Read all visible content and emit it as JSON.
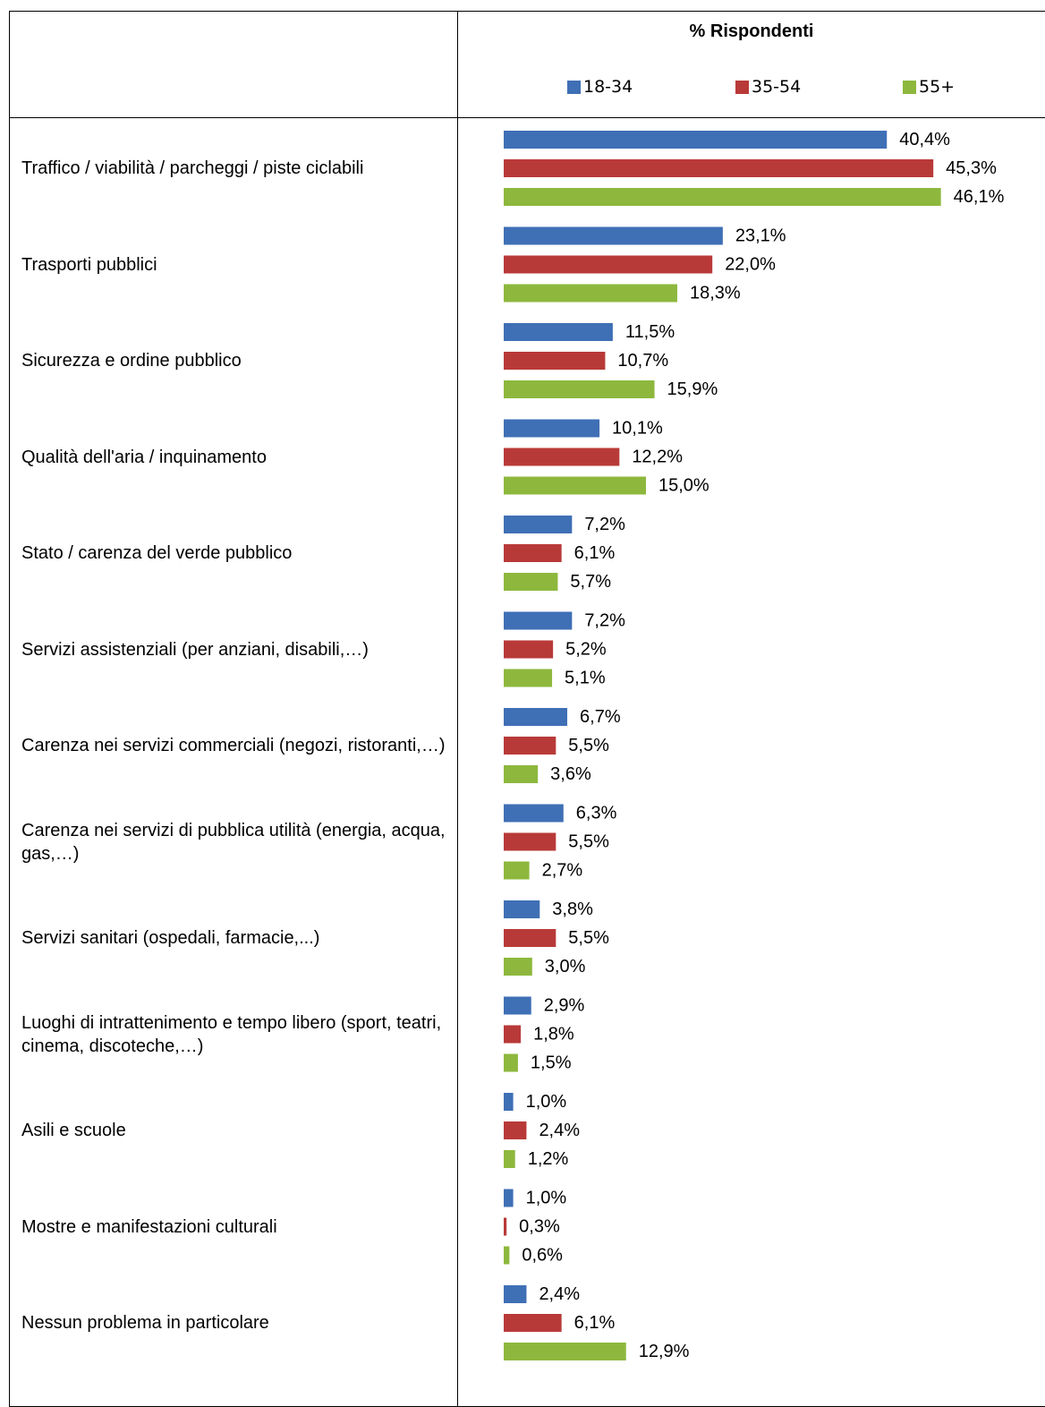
{
  "header": {
    "title": "% Rispondenti"
  },
  "legend": [
    {
      "label": "18-34",
      "color": "#3f6fb5"
    },
    {
      "label": "35-54",
      "color": "#b83a38"
    },
    {
      "label": "55+",
      "color": "#8db83d"
    }
  ],
  "chart_data": {
    "type": "bar",
    "orientation": "horizontal",
    "title": "% Rispondenti",
    "categories": [
      "Traffico / viabilità / parcheggi / piste ciclabili",
      "Trasporti pubblici",
      "Sicurezza e ordine pubblico",
      "Qualità dell'aria / inquinamento",
      "Stato / carenza del verde pubblico",
      "Servizi assistenziali (per anziani, disabili,…)",
      "Carenza nei servizi commerciali (negozi, ristoranti,…)",
      "Carenza nei servizi di pubblica utilità (energia, acqua, gas,…)",
      "Servizi sanitari (ospedali, farmacie,...)",
      "Luoghi di intrattenimento e tempo libero (sport, teatri, cinema, discoteche,…)",
      "Asili e scuole",
      "Mostre e manifestazioni culturali",
      "Nessun problema in particolare"
    ],
    "series": [
      {
        "name": "18-34",
        "color": "#3f6fb5",
        "values": [
          40.4,
          23.1,
          11.5,
          10.1,
          7.2,
          7.2,
          6.7,
          6.3,
          3.8,
          2.9,
          1.0,
          1.0,
          2.4
        ],
        "labels": [
          "40,4%",
          "23,1%",
          "11,5%",
          "10,1%",
          "7,2%",
          "7,2%",
          "6,7%",
          "6,3%",
          "3,8%",
          "2,9%",
          "1,0%",
          "1,0%",
          "2,4%"
        ]
      },
      {
        "name": "35-54",
        "color": "#b83a38",
        "values": [
          45.3,
          22.0,
          10.7,
          12.2,
          6.1,
          5.2,
          5.5,
          5.5,
          5.5,
          1.8,
          2.4,
          0.3,
          6.1
        ],
        "labels": [
          "45,3%",
          "22,0%",
          "10,7%",
          "12,2%",
          "6,1%",
          "5,2%",
          "5,5%",
          "5,5%",
          "5,5%",
          "1,8%",
          "2,4%",
          "0,3%",
          "6,1%"
        ]
      },
      {
        "name": "55+",
        "color": "#8db83d",
        "values": [
          46.1,
          18.3,
          15.9,
          15.0,
          5.7,
          5.1,
          3.6,
          2.7,
          3.0,
          1.5,
          1.2,
          0.6,
          12.9
        ],
        "labels": [
          "46,1%",
          "18,3%",
          "15,9%",
          "15,0%",
          "5,7%",
          "5,1%",
          "3,6%",
          "2,7%",
          "3,0%",
          "1,5%",
          "1,2%",
          "0,6%",
          "12,9%"
        ]
      }
    ],
    "grid": false,
    "legend_position": "top"
  }
}
